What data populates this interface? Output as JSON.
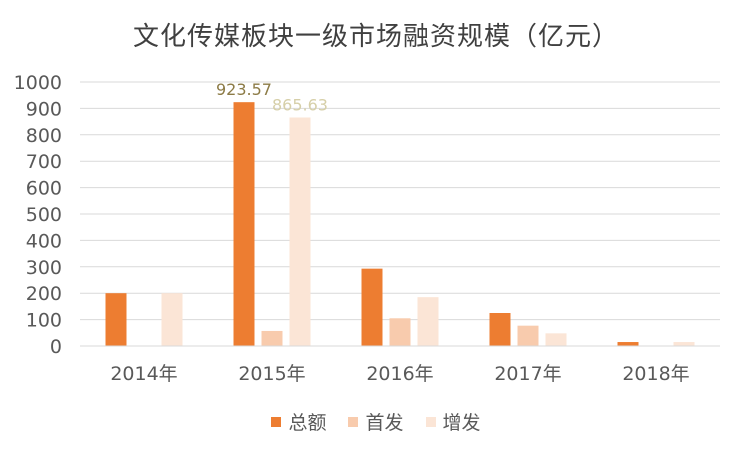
{
  "chart_data": {
    "type": "bar",
    "title": "文化传媒板块一级市场融资规模（亿元）",
    "categories": [
      "2014年",
      "2015年",
      "2016年",
      "2017年",
      "2018年"
    ],
    "series": [
      {
        "name": "总额",
        "color": "#ED7D31",
        "values": [
          200,
          923.57,
          293,
          125,
          15
        ]
      },
      {
        "name": "首发",
        "color": "#F8CBAD",
        "values": [
          0,
          57,
          105,
          77,
          0
        ]
      },
      {
        "name": "增发",
        "color": "#FBE5D6",
        "values": [
          200,
          865.63,
          185,
          48,
          15
        ]
      }
    ],
    "data_labels": [
      {
        "series": 0,
        "index": 1,
        "text": "923.57",
        "color": "#8C7B46"
      },
      {
        "series": 2,
        "index": 1,
        "text": "865.63",
        "color": "#D6CFA8"
      }
    ],
    "ylim": [
      0,
      1000
    ],
    "yticks": [
      0,
      100,
      200,
      300,
      400,
      500,
      600,
      700,
      800,
      900,
      1000
    ],
    "grid": true,
    "legend_position": "bottom",
    "axis_color": "#D9D9D9",
    "text_color": "#595959"
  }
}
